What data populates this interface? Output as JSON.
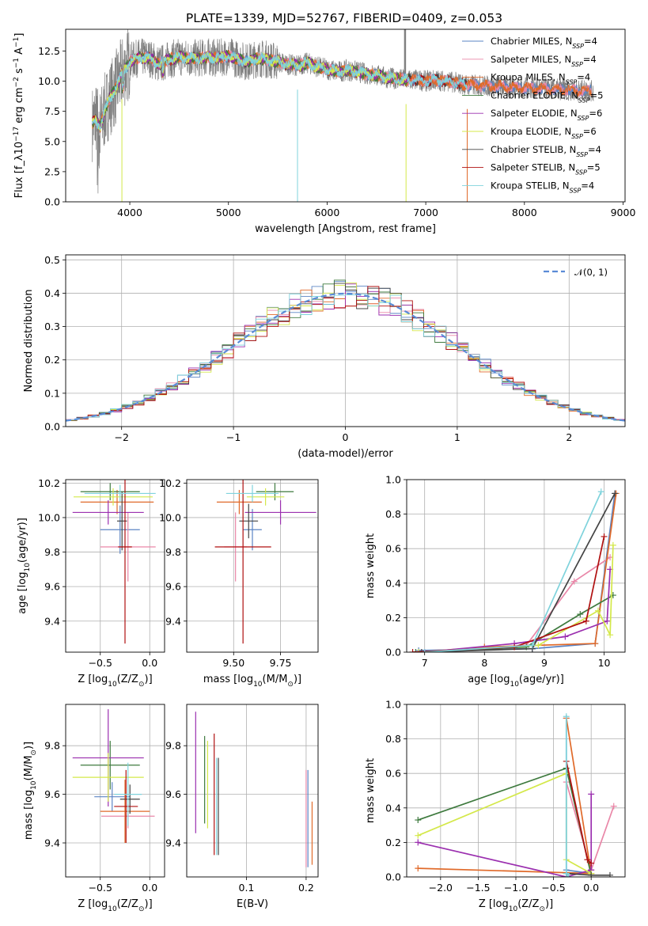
{
  "figure": {
    "title": "PLATE=1339, MJD=52767, FIBERID=0409, z=0.053"
  },
  "colors": {
    "Chabrier MILES": "#5b84c4",
    "Salpeter MILES": "#e987a8",
    "Kroupa MILES": "#e06a2a",
    "Chabrier ELODIE": "#3e7a3e",
    "Salpeter ELODIE": "#9b2faf",
    "Kroupa ELODIE": "#d4e84a",
    "Chabrier STELIB": "#444444",
    "Salpeter STELIB": "#b01010",
    "Kroupa STELIB": "#7fd3dc",
    "data": "#808080",
    "normal": "#5b8bd6"
  },
  "chart_data": [
    {
      "id": "spectrum",
      "type": "line",
      "title": "PLATE=1339, MJD=52767, FIBERID=0409, z=0.053",
      "xlabel": "wavelength [Angstrom, rest frame]",
      "ylabel": "Flux [f_λ10^-17 erg cm^-2 s^-1 A^-1]",
      "xlim": [
        3350,
        9020
      ],
      "ylim": [
        0,
        14.3
      ],
      "xticks": [
        4000,
        5000,
        6000,
        7000,
        8000,
        9000
      ],
      "yticks": [
        0.0,
        2.5,
        5.0,
        7.5,
        10.0,
        12.5
      ],
      "xtick_labels": [
        "4000",
        "5000",
        "6000",
        "7000",
        "8000",
        "9000"
      ],
      "ytick_labels": [
        "0.0",
        "2.5",
        "5.0",
        "7.5",
        "10.0",
        "12.5"
      ],
      "legend_position": "top-right",
      "legend": [
        {
          "name": "Chabrier MILES",
          "label": "Chabrier MILES, N_SSP=4"
        },
        {
          "name": "Salpeter MILES",
          "label": "Salpeter MILES, N_SSP=4"
        },
        {
          "name": "Kroupa MILES",
          "label": "Kroupa MILES, N_SSP=4"
        },
        {
          "name": "Chabrier ELODIE",
          "label": "Chabrier ELODIE, N_SSP=5"
        },
        {
          "name": "Salpeter ELODIE",
          "label": "Salpeter ELODIE, N_SSP=6"
        },
        {
          "name": "Kroupa ELODIE",
          "label": "Kroupa ELODIE, N_SSP=6"
        },
        {
          "name": "Chabrier STELIB",
          "label": "Chabrier STELIB, N_SSP=4"
        },
        {
          "name": "Salpeter STELIB",
          "label": "Salpeter STELIB, N_SSP=5"
        },
        {
          "name": "Kroupa STELIB",
          "label": "Kroupa STELIB, N_SSP=4"
        }
      ],
      "model_anchor": {
        "x": [
          3620,
          3650,
          3700,
          3750,
          3800,
          3850,
          3900,
          3950,
          4000,
          4100,
          4200,
          4300,
          4400,
          4500,
          4600,
          4700,
          4800,
          4900,
          5000,
          5100,
          5200,
          5300,
          5400,
          5500,
          5600,
          5700,
          5800,
          5900,
          6000,
          6100,
          6200,
          6300,
          6400,
          6500,
          6600,
          6700,
          6800,
          6900,
          7000,
          7100,
          7200,
          7300,
          7400
        ],
        "y": [
          6.5,
          6.8,
          6.3,
          7.6,
          8.6,
          9.3,
          10.2,
          11.0,
          11.6,
          12.0,
          11.9,
          11.4,
          11.8,
          12.0,
          11.9,
          11.9,
          12.0,
          11.9,
          12.1,
          11.8,
          11.6,
          11.9,
          11.8,
          11.6,
          11.4,
          11.3,
          11.5,
          11.2,
          11.0,
          10.8,
          10.9,
          10.8,
          10.6,
          10.5,
          10.3,
          10.2,
          10.1,
          10.1,
          10.0,
          10.1,
          10.0,
          9.9,
          9.7
        ]
      },
      "data_range": [
        3620,
        8700
      ]
    },
    {
      "id": "residuals",
      "type": "histogram",
      "xlabel": "(data-model)/error",
      "ylabel": "Normed distribution",
      "xlim": [
        -2.5,
        2.5
      ],
      "ylim": [
        0,
        0.515
      ],
      "xticks": [
        -2,
        -1,
        0,
        1,
        2
      ],
      "xtick_labels": [
        "−2",
        "−1",
        "0",
        "1",
        "2"
      ],
      "yticks": [
        0.0,
        0.1,
        0.2,
        0.3,
        0.4,
        0.5
      ],
      "ytick_labels": [
        "0.0",
        "0.1",
        "0.2",
        "0.3",
        "0.4",
        "0.5"
      ],
      "legend_position": "top-right",
      "legend": [
        {
          "name": "normal",
          "label": "𝒩(0, 1)"
        }
      ],
      "grid": true
    },
    {
      "id": "age_vs_Z",
      "type": "errorbar",
      "xlabel": "Z [log10(Z/Z⊙)]",
      "ylabel": "age [log10(age/yr)]",
      "xlim": [
        -0.85,
        0.15
      ],
      "ylim": [
        9.22,
        10.22
      ],
      "xticks": [
        -0.5,
        0.0
      ],
      "xtick_labels": [
        "−0.5",
        "0.0"
      ],
      "yticks": [
        9.4,
        9.6,
        9.8,
        10.0,
        10.2
      ],
      "ytick_labels": [
        "9.4",
        "9.6",
        "9.8",
        "10.0",
        "10.2"
      ],
      "points": [
        {
          "model": "Chabrier MILES",
          "x": -0.3,
          "xerr": 0.2,
          "y": 9.93,
          "yerr": 0.14
        },
        {
          "model": "Salpeter MILES",
          "x": -0.22,
          "xerr": 0.28,
          "y": 9.83,
          "yerr": 0.2
        },
        {
          "model": "Kroupa MILES",
          "x": -0.33,
          "xerr": 0.37,
          "y": 10.09,
          "yerr": 0.07
        },
        {
          "model": "Chabrier ELODIE",
          "x": -0.4,
          "xerr": 0.3,
          "y": 10.15,
          "yerr": 0.05
        },
        {
          "model": "Salpeter ELODIE",
          "x": -0.42,
          "xerr": 0.36,
          "y": 10.03,
          "yerr": 0.07
        },
        {
          "model": "Kroupa ELODIE",
          "x": -0.37,
          "xerr": 0.4,
          "y": 10.12,
          "yerr": 0.05
        },
        {
          "model": "Chabrier STELIB",
          "x": -0.28,
          "xerr": 0.05,
          "y": 9.98,
          "yerr": 0.17
        },
        {
          "model": "Salpeter STELIB",
          "x": -0.25,
          "xerr": 0.07,
          "y": 9.83,
          "yerr": 0.56
        },
        {
          "model": "Kroupa STELIB",
          "x": -0.3,
          "xerr": 0.36,
          "y": 10.14,
          "yerr": 0.05
        }
      ]
    },
    {
      "id": "age_vs_mass",
      "type": "errorbar",
      "xlabel": "mass [log10(M/M⊙)]",
      "ylabel": "",
      "xlim": [
        9.25,
        9.95
      ],
      "ylim": [
        9.22,
        10.22
      ],
      "xticks": [
        9.5,
        9.75
      ],
      "xtick_labels": [
        "9.50",
        "9.75"
      ],
      "yticks": [
        9.4,
        9.6,
        9.8,
        10.0,
        10.2
      ],
      "ytick_labels": [
        "9.4",
        "9.6",
        "9.8",
        "10.0",
        "10.2"
      ],
      "points": [
        {
          "model": "Chabrier MILES",
          "x": 9.6,
          "xerr": 0.05,
          "y": 9.93,
          "yerr": 0.12
        },
        {
          "model": "Salpeter MILES",
          "x": 9.51,
          "xerr": 0.06,
          "y": 9.83,
          "yerr": 0.2
        },
        {
          "model": "Kroupa MILES",
          "x": 9.53,
          "xerr": 0.12,
          "y": 10.09,
          "yerr": 0.07
        },
        {
          "model": "Chabrier ELODIE",
          "x": 9.72,
          "xerr": 0.1,
          "y": 10.15,
          "yerr": 0.05
        },
        {
          "model": "Salpeter ELODIE",
          "x": 9.75,
          "xerr": 0.19,
          "y": 10.03,
          "yerr": 0.07
        },
        {
          "model": "Kroupa ELODIE",
          "x": 9.67,
          "xerr": 0.1,
          "y": 10.12,
          "yerr": 0.05
        },
        {
          "model": "Chabrier STELIB",
          "x": 9.58,
          "xerr": 0.05,
          "y": 9.98,
          "yerr": 0.1
        },
        {
          "model": "Salpeter STELIB",
          "x": 9.55,
          "xerr": 0.15,
          "y": 9.83,
          "yerr": 0.56
        },
        {
          "model": "Kroupa STELIB",
          "x": 9.6,
          "xerr": 0.14,
          "y": 10.14,
          "yerr": 0.05
        }
      ]
    },
    {
      "id": "weight_vs_age",
      "type": "line",
      "xlabel": "age [log10(age/yr)]",
      "ylabel": "mass weight",
      "xlim": [
        6.7,
        10.35
      ],
      "ylim": [
        0,
        1.0
      ],
      "xticks": [
        7,
        8,
        9,
        10
      ],
      "xtick_labels": [
        "7",
        "8",
        "9",
        "10"
      ],
      "yticks": [
        0.0,
        0.2,
        0.4,
        0.6,
        0.8,
        1.0
      ],
      "ytick_labels": [
        "0.0",
        "0.2",
        "0.4",
        "0.6",
        "0.8",
        "1.0"
      ],
      "series": [
        {
          "model": "Chabrier MILES",
          "x": [
            6.9,
            8.8,
            9.85,
            10.18
          ],
          "y": [
            0.01,
            0.02,
            0.05,
            0.92
          ]
        },
        {
          "model": "Salpeter MILES",
          "x": [
            7.0,
            8.7,
            9.5,
            10.1
          ],
          "y": [
            0.0,
            0.04,
            0.41,
            0.55
          ]
        },
        {
          "model": "Kroupa MILES",
          "x": [
            6.95,
            8.0,
            9.85,
            10.2
          ],
          "y": [
            0.0,
            0.03,
            0.05,
            0.92
          ]
        },
        {
          "model": "Chabrier ELODIE",
          "x": [
            6.85,
            8.7,
            9.6,
            10.15
          ],
          "y": [
            0.0,
            0.03,
            0.22,
            0.33
          ]
        },
        {
          "model": "Salpeter ELODIE",
          "x": [
            7.0,
            8.5,
            9.35,
            10.05,
            10.1
          ],
          "y": [
            0.0,
            0.05,
            0.09,
            0.18,
            0.48
          ]
        },
        {
          "model": "Kroupa ELODIE",
          "x": [
            6.9,
            8.9,
            9.9,
            10.1,
            10.15
          ],
          "y": [
            0.0,
            0.04,
            0.24,
            0.1,
            0.62
          ]
        },
        {
          "model": "Chabrier STELIB",
          "x": [
            6.95,
            8.8,
            10.18
          ],
          "y": [
            0.0,
            0.02,
            0.92
          ]
        },
        {
          "model": "Salpeter STELIB",
          "x": [
            6.8,
            8.5,
            9.7,
            10.0
          ],
          "y": [
            0.0,
            0.03,
            0.18,
            0.67
          ]
        },
        {
          "model": "Kroupa STELIB",
          "x": [
            7.0,
            8.8,
            9.95
          ],
          "y": [
            0.0,
            0.04,
            0.93
          ]
        }
      ]
    },
    {
      "id": "mass_vs_Z",
      "type": "errorbar",
      "xlabel": "Z [log10(Z/Z⊙)]",
      "ylabel": "mass [log10(M/M⊙)]",
      "xlim": [
        -0.85,
        0.15
      ],
      "ylim": [
        9.26,
        9.97
      ],
      "xticks": [
        -0.5,
        0.0
      ],
      "xtick_labels": [
        "−0.5",
        "0.0"
      ],
      "yticks": [
        9.4,
        9.6,
        9.8
      ],
      "ytick_labels": [
        "9.4",
        "9.6",
        "9.8"
      ],
      "points": [
        {
          "model": "Chabrier MILES",
          "x": -0.38,
          "xerr": 0.18,
          "y": 9.59,
          "yerr": 0.06
        },
        {
          "model": "Salpeter MILES",
          "x": -0.22,
          "xerr": 0.27,
          "y": 9.51,
          "yerr": 0.05
        },
        {
          "model": "Kroupa MILES",
          "x": -0.25,
          "xerr": 0.25,
          "y": 9.53,
          "yerr": 0.13
        },
        {
          "model": "Chabrier ELODIE",
          "x": -0.4,
          "xerr": 0.3,
          "y": 9.72,
          "yerr": 0.1
        },
        {
          "model": "Salpeter ELODIE",
          "x": -0.42,
          "xerr": 0.36,
          "y": 9.75,
          "yerr": 0.2
        },
        {
          "model": "Kroupa ELODIE",
          "x": -0.42,
          "xerr": 0.36,
          "y": 9.67,
          "yerr": 0.1
        },
        {
          "model": "Chabrier STELIB",
          "x": -0.2,
          "xerr": 0.1,
          "y": 9.58,
          "yerr": 0.06
        },
        {
          "model": "Salpeter STELIB",
          "x": -0.24,
          "xerr": 0.12,
          "y": 9.55,
          "yerr": 0.15
        },
        {
          "model": "Kroupa STELIB",
          "x": -0.22,
          "xerr": 0.14,
          "y": 9.6,
          "yerr": 0.13
        }
      ]
    },
    {
      "id": "mass_vs_EBV",
      "type": "errorbar",
      "xlabel": "E(B-V)",
      "ylabel": "",
      "xlim": [
        0.0,
        0.22
      ],
      "ylim": [
        9.26,
        9.97
      ],
      "xticks": [
        0.1,
        0.2
      ],
      "xtick_labels": [
        "0.1",
        "0.2"
      ],
      "yticks": [
        9.4,
        9.6,
        9.8
      ],
      "ytick_labels": [
        "9.4",
        "9.6",
        "9.8"
      ],
      "points": [
        {
          "model": "Chabrier MILES",
          "x": 0.203,
          "y": 9.5,
          "yerr": 0.2
        },
        {
          "model": "Salpeter MILES",
          "x": 0.2,
          "y": 9.5,
          "yerr": 0.2
        },
        {
          "model": "Kroupa MILES",
          "x": 0.21,
          "y": 9.44,
          "yerr": 0.13
        },
        {
          "model": "Chabrier ELODIE",
          "x": 0.03,
          "y": 9.66,
          "yerr": 0.18
        },
        {
          "model": "Salpeter ELODIE",
          "x": 0.015,
          "y": 9.69,
          "yerr": 0.25
        },
        {
          "model": "Kroupa ELODIE",
          "x": 0.035,
          "y": 9.64,
          "yerr": 0.18
        },
        {
          "model": "Chabrier STELIB",
          "x": 0.053,
          "y": 9.55,
          "yerr": 0.2
        },
        {
          "model": "Salpeter STELIB",
          "x": 0.046,
          "y": 9.6,
          "yerr": 0.25
        },
        {
          "model": "Kroupa STELIB",
          "x": 0.05,
          "y": 9.55,
          "yerr": 0.2
        }
      ]
    },
    {
      "id": "weight_vs_Z",
      "type": "line",
      "xlabel": "Z [log10(Z/Z⊙)]",
      "ylabel": "mass weight",
      "xlim": [
        -2.45,
        0.45
      ],
      "ylim": [
        0,
        1.0
      ],
      "xticks": [
        -2.0,
        -1.5,
        -1.0,
        -0.5,
        0.0
      ],
      "xtick_labels": [
        "−2.0",
        "−1.5",
        "−1.0",
        "−0.5",
        "0.0"
      ],
      "yticks": [
        0.0,
        0.2,
        0.4,
        0.6,
        0.8,
        1.0
      ],
      "ytick_labels": [
        "0.0",
        "0.2",
        "0.4",
        "0.6",
        "0.8",
        "1.0"
      ],
      "series": [
        {
          "model": "Chabrier MILES",
          "x": [
            -0.33,
            -0.33,
            0.0
          ],
          "y": [
            0.92,
            0.04,
            0.02
          ]
        },
        {
          "model": "Salpeter MILES",
          "x": [
            -0.33,
            0.0,
            0.3
          ],
          "y": [
            0.55,
            0.04,
            0.41
          ]
        },
        {
          "model": "Kroupa MILES",
          "x": [
            -2.3,
            0.0,
            -0.33
          ],
          "y": [
            0.05,
            0.02,
            0.92
          ]
        },
        {
          "model": "Chabrier ELODIE",
          "x": [
            -2.3,
            -0.33,
            0.0
          ],
          "y": [
            0.33,
            0.63,
            0.01
          ]
        },
        {
          "model": "Salpeter ELODIE",
          "x": [
            -2.3,
            -0.33,
            0.0,
            0.0
          ],
          "y": [
            0.2,
            0.0,
            0.04,
            0.48
          ]
        },
        {
          "model": "Kroupa ELODIE",
          "x": [
            -2.3,
            -0.33,
            -0.33,
            0.0
          ],
          "y": [
            0.24,
            0.6,
            0.1,
            0.02
          ]
        },
        {
          "model": "Chabrier STELIB",
          "x": [
            -0.33,
            0.0,
            0.25
          ],
          "y": [
            0.02,
            0.01,
            0.01
          ]
        },
        {
          "model": "Salpeter STELIB",
          "x": [
            -0.33,
            -0.05,
            0.0
          ],
          "y": [
            0.67,
            0.1,
            0.08
          ]
        },
        {
          "model": "Kroupa STELIB",
          "x": [
            -0.33,
            -0.33,
            -0.3
          ],
          "y": [
            0.93,
            0.02,
            0.0
          ]
        }
      ]
    }
  ]
}
